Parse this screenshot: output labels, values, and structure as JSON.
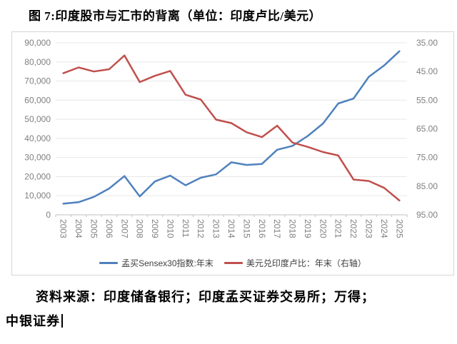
{
  "title": "图 7:印度股市与汇市的背离（单位：印度卢比/美元）",
  "chart_data": {
    "type": "line",
    "title": "图 7:印度股市与汇市的背离（单位：印度卢比/美元）",
    "categories": [
      "2003",
      "2004",
      "2005",
      "2006",
      "2007",
      "2008",
      "2009",
      "2010",
      "2011",
      "2012",
      "2013",
      "2014",
      "2015",
      "2016",
      "2017",
      "2018",
      "2019",
      "2020",
      "2021",
      "2022",
      "2023",
      "2024",
      "2025"
    ],
    "series": [
      {
        "name": "孟买Sensex30指数:年末",
        "axis": "left",
        "color": "#4F81BD",
        "values": [
          5839,
          6603,
          9398,
          13787,
          20287,
          9647,
          17465,
          20509,
          15455,
          19427,
          21171,
          27499,
          26118,
          26626,
          34057,
          36068,
          41254,
          47751,
          58254,
          60841,
          72240,
          78139,
          85600
        ]
      },
      {
        "name": "美元兑印度卢比：年末（右轴）",
        "axis": "right",
        "color": "#C0504D",
        "values": [
          45.6,
          43.6,
          45.0,
          44.2,
          39.4,
          48.7,
          46.5,
          44.8,
          53.1,
          54.8,
          61.8,
          63.0,
          66.2,
          67.9,
          63.9,
          69.8,
          71.3,
          73.1,
          74.3,
          82.7,
          83.2,
          85.6,
          90.0
        ]
      }
    ],
    "left_axis": {
      "min": 0,
      "max": 90000,
      "step": 10000,
      "labels": [
        "0",
        "10,000",
        "20,000",
        "30,000",
        "40,000",
        "50,000",
        "60,000",
        "70,000",
        "80,000",
        "90,000"
      ]
    },
    "right_axis": {
      "min": 35,
      "max": 95,
      "step": 10,
      "inverted": true,
      "labels": [
        "35.00",
        "45.00",
        "55.00",
        "65.00",
        "75.00",
        "85.00",
        "95.00"
      ]
    },
    "grid": true,
    "legend_position": "bottom",
    "x_label_rotation": 90
  },
  "source": {
    "line1": "资料来源：印度储备银行；印度孟买证券交易所；万得；",
    "line2": "中银证券"
  },
  "colors": {
    "sensex_line": "#4F81BD",
    "usdinr_line": "#C0504D",
    "grid": "#e8e8e8",
    "axis_line": "#bfbfbf",
    "axis_text": "#7f7f7f",
    "chart_border": "#d6d6d6"
  }
}
